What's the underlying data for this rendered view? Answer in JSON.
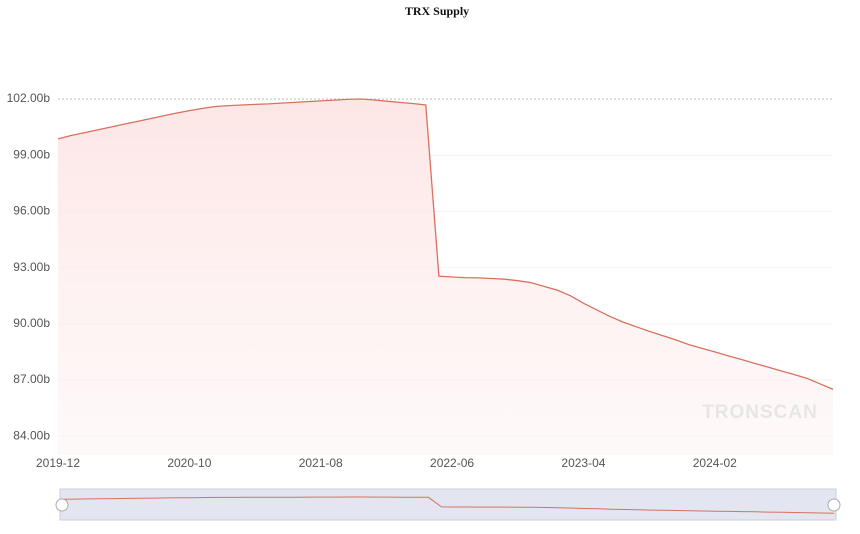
{
  "chart_data": {
    "type": "line",
    "title": "TRX Supply",
    "watermark": "TRONSCAN",
    "x": [
      "2019-12",
      "2020-01",
      "2020-02",
      "2020-03",
      "2020-04",
      "2020-05",
      "2020-06",
      "2020-07",
      "2020-08",
      "2020-09",
      "2020-10",
      "2020-11",
      "2020-12",
      "2021-01",
      "2021-02",
      "2021-03",
      "2021-04",
      "2021-05",
      "2021-06",
      "2021-07",
      "2021-08",
      "2021-09",
      "2021-10",
      "2021-11",
      "2021-12",
      "2022-01",
      "2022-02",
      "2022-03",
      "2022-04",
      "2022-05",
      "2022-06",
      "2022-07",
      "2022-08",
      "2022-09",
      "2022-10",
      "2022-11",
      "2022-12",
      "2023-01",
      "2023-02",
      "2023-03",
      "2023-04",
      "2023-05",
      "2023-06",
      "2023-07",
      "2023-08",
      "2023-09",
      "2023-10",
      "2023-11",
      "2023-12",
      "2024-01",
      "2024-02",
      "2024-03",
      "2024-04",
      "2024-05",
      "2024-06",
      "2024-07",
      "2024-08",
      "2024-09",
      "2024-10",
      "2024-11"
    ],
    "series": [
      {
        "name": "TRX Supply",
        "color": "#d9705e",
        "values": [
          99.87,
          100.05,
          100.2,
          100.35,
          100.5,
          100.65,
          100.8,
          100.95,
          101.1,
          101.25,
          101.38,
          101.5,
          101.6,
          101.65,
          101.68,
          101.71,
          101.74,
          101.78,
          101.82,
          101.86,
          101.9,
          101.94,
          101.98,
          102.0,
          101.95,
          101.88,
          101.82,
          101.76,
          101.68,
          92.55,
          92.5,
          92.47,
          92.45,
          92.42,
          92.38,
          92.3,
          92.2,
          92.0,
          91.8,
          91.5,
          91.1,
          90.75,
          90.4,
          90.1,
          89.85,
          89.6,
          89.38,
          89.15,
          88.9,
          88.7,
          88.5,
          88.3,
          88.1,
          87.9,
          87.7,
          87.5,
          87.3,
          87.1,
          86.8,
          86.5
        ]
      }
    ],
    "xticks": [
      "2019-12",
      "2020-10",
      "2021-08",
      "2022-06",
      "2023-04",
      "2024-02"
    ],
    "ylim": [
      83,
      102
    ],
    "yticks": [
      {
        "value": 84,
        "label": "84.00b"
      },
      {
        "value": 87,
        "label": "87.00b"
      },
      {
        "value": 90,
        "label": "90.00b"
      },
      {
        "value": 93,
        "label": "93.00b"
      },
      {
        "value": 96,
        "label": "96.00b"
      },
      {
        "value": 99,
        "label": "99.00b"
      },
      {
        "value": 102,
        "label": "102.00b"
      }
    ],
    "grid": true
  }
}
